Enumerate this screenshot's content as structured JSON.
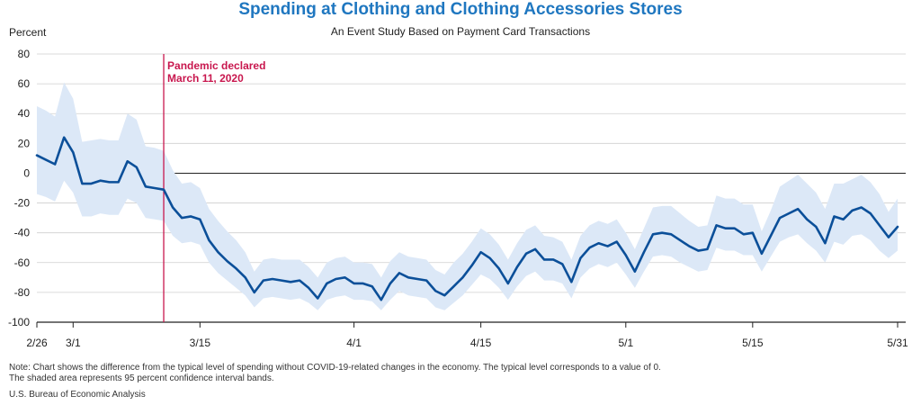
{
  "title": "Spending at Clothing and Clothing Accessories Stores",
  "subtitle": "An Event Study Based on Payment Card Transactions",
  "footnote": {
    "line1": "Note: Chart shows the difference from the typical level of spending without COVID-19-related changes in the economy. The typical level corresponds to a value of 0.",
    "line2": "The shaded area represents 95 percent confidence interval bands."
  },
  "source": "U.S. Bureau of Economic Analysis",
  "colors": {
    "title": "#1f77c0",
    "line": "#0b4f99",
    "band": "#dce8f7",
    "event_line": "#c8174e",
    "grid": "#cfcfcf"
  },
  "chart_data": {
    "type": "line",
    "ylabel": "Percent",
    "ylim": [
      -100,
      80
    ],
    "yticks": [
      -100,
      -80,
      -60,
      -40,
      -20,
      0,
      20,
      40,
      60,
      80
    ],
    "xticks": [
      {
        "label": "2/26",
        "day": 0
      },
      {
        "label": "3/1",
        "day": 4
      },
      {
        "label": "3/15",
        "day": 18
      },
      {
        "label": "4/1",
        "day": 35
      },
      {
        "label": "4/15",
        "day": 49
      },
      {
        "label": "5/1",
        "day": 65
      },
      {
        "label": "5/15",
        "day": 79
      },
      {
        "label": "5/31",
        "day": 95
      }
    ],
    "grid": true,
    "event": {
      "label_line1": "Pandemic declared",
      "label_line2": "March 11, 2020",
      "day": 14
    },
    "series": [
      {
        "values": [
          12,
          9,
          6,
          24,
          14,
          -7,
          -7,
          -5,
          -6,
          -6,
          8,
          4,
          -9,
          -10,
          -11,
          -23,
          -30,
          -29,
          -31,
          -45,
          -53,
          -59,
          -64,
          -70,
          -80,
          -72,
          -71,
          -72,
          -73,
          -72,
          -77,
          -84,
          -74,
          -71,
          -70,
          -74,
          -74,
          -76,
          -85,
          -74,
          -67,
          -70,
          -71,
          -72,
          -79,
          -82,
          -76,
          -70,
          -62,
          -53,
          -57,
          -64,
          -74,
          -63,
          -54,
          -51,
          -58,
          -58,
          -61,
          -73,
          -57,
          -50,
          -47,
          -49,
          -46,
          -55,
          -66,
          -53,
          -41,
          -40,
          -41,
          -45,
          -49,
          -52,
          -51,
          -35,
          -37,
          -37,
          -41,
          -40,
          -54,
          -42,
          -30,
          -27,
          -24,
          -31,
          -36,
          -47,
          -29,
          -31,
          -25,
          -23,
          -27,
          -35,
          -43,
          -36
        ],
        "upper": [
          45,
          42,
          38,
          61,
          50,
          21,
          22,
          23,
          22,
          22,
          40,
          36,
          18,
          17,
          15,
          2,
          -7,
          -6,
          -10,
          -24,
          -32,
          -39,
          -45,
          -53,
          -66,
          -58,
          -57,
          -58,
          -58,
          -58,
          -63,
          -70,
          -60,
          -57,
          -56,
          -60,
          -60,
          -61,
          -70,
          -59,
          -53,
          -56,
          -57,
          -58,
          -65,
          -68,
          -60,
          -54,
          -46,
          -37,
          -41,
          -48,
          -58,
          -47,
          -38,
          -35,
          -42,
          -43,
          -46,
          -58,
          -42,
          -35,
          -32,
          -34,
          -31,
          -40,
          -51,
          -37,
          -23,
          -22,
          -22,
          -27,
          -32,
          -36,
          -35,
          -15,
          -17,
          -17,
          -21,
          -21,
          -39,
          -25,
          -9,
          -5,
          -1,
          -7,
          -13,
          -24,
          -7,
          -7,
          -4,
          -1,
          -6,
          -14,
          -26,
          -17
        ],
        "lower": [
          -14,
          -16,
          -19,
          -5,
          -13,
          -29,
          -29,
          -27,
          -28,
          -28,
          -17,
          -20,
          -30,
          -31,
          -32,
          -42,
          -47,
          -46,
          -48,
          -60,
          -67,
          -72,
          -77,
          -82,
          -90,
          -84,
          -83,
          -84,
          -85,
          -84,
          -87,
          -92,
          -85,
          -83,
          -82,
          -85,
          -85,
          -86,
          -92,
          -85,
          -79,
          -82,
          -83,
          -84,
          -90,
          -92,
          -87,
          -82,
          -75,
          -68,
          -71,
          -77,
          -85,
          -76,
          -69,
          -66,
          -72,
          -72,
          -74,
          -84,
          -70,
          -64,
          -61,
          -63,
          -60,
          -68,
          -77,
          -66,
          -56,
          -55,
          -56,
          -60,
          -63,
          -66,
          -65,
          -50,
          -52,
          -52,
          -55,
          -55,
          -66,
          -56,
          -46,
          -43,
          -41,
          -47,
          -52,
          -60,
          -46,
          -48,
          -42,
          -41,
          -45,
          -52,
          -57,
          -52
        ]
      }
    ]
  }
}
